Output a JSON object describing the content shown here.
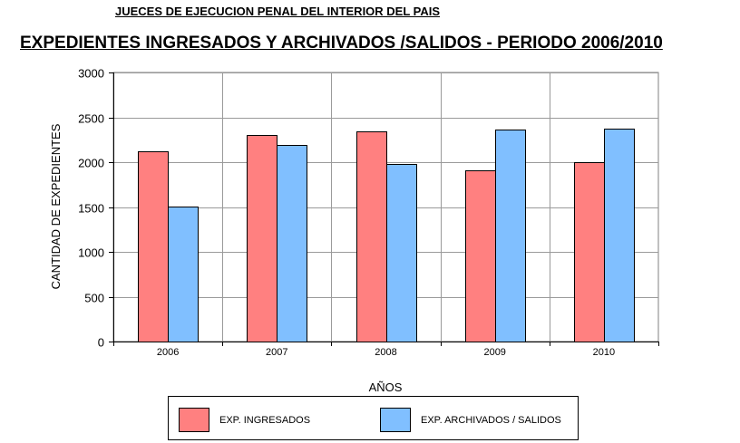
{
  "chart_data": {
    "type": "bar",
    "supertitle": "JUECES DE EJECUCION PENAL DEL INTERIOR DEL PAIS",
    "title": "EXPEDIENTES INGRESADOS Y ARCHIVADOS /SALIDOS - PERIODO 2006/2010",
    "xlabel": "AÑOS",
    "ylabel": "CANTIDAD DE EXPEDIENTES",
    "ylim": [
      0,
      3000
    ],
    "yticks": [
      0,
      500,
      1000,
      1500,
      2000,
      2500,
      3000
    ],
    "categories": [
      "2006",
      "2007",
      "2008",
      "2009",
      "2010"
    ],
    "series": [
      {
        "name": "EXP. INGRESADOS",
        "color": "#ff8080",
        "values": [
          2125,
          2305,
          2345,
          1910,
          1995
        ]
      },
      {
        "name": "EXP. ARCHIVADOS / SALIDOS",
        "color": "#80bfff",
        "values": [
          1510,
          2190,
          1980,
          2365,
          2375
        ]
      }
    ],
    "grid": true,
    "legend": "bottom"
  }
}
